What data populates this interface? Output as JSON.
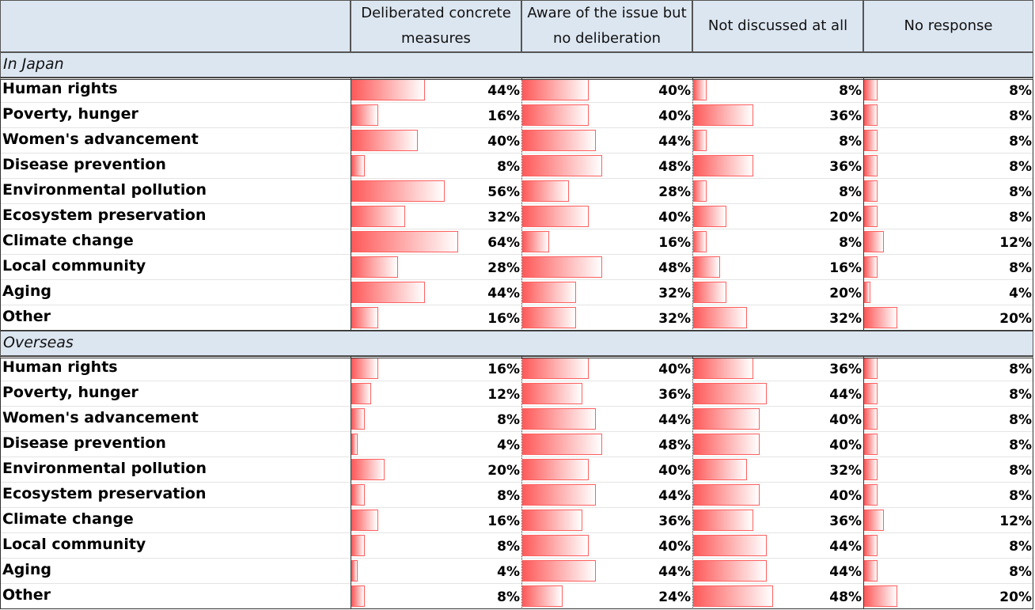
{
  "table": {
    "columns": [
      "Deliberated concrete measures",
      "Aware of the issue but no deliberation",
      "Not discussed at all",
      "No response"
    ],
    "sections": [
      {
        "title": "In Japan",
        "rows": [
          {
            "label": "Human rights",
            "values": [
              44,
              40,
              8,
              8
            ],
            "value_labels": [
              "44%",
              "40%",
              "8%",
              "8%"
            ]
          },
          {
            "label": "Poverty, hunger",
            "values": [
              16,
              40,
              36,
              8
            ],
            "value_labels": [
              "16%",
              "40%",
              "36%",
              "8%"
            ]
          },
          {
            "label": "Women's advancement",
            "values": [
              40,
              44,
              8,
              8
            ],
            "value_labels": [
              "40%",
              "44%",
              "8%",
              "8%"
            ]
          },
          {
            "label": "Disease prevention",
            "values": [
              8,
              48,
              36,
              8
            ],
            "value_labels": [
              "8%",
              "48%",
              "36%",
              "8%"
            ]
          },
          {
            "label": "Environmental pollution",
            "values": [
              56,
              28,
              8,
              8
            ],
            "value_labels": [
              "56%",
              "28%",
              "8%",
              "8%"
            ]
          },
          {
            "label": "Ecosystem preservation",
            "values": [
              32,
              40,
              20,
              8
            ],
            "value_labels": [
              "32%",
              "40%",
              "20%",
              "8%"
            ]
          },
          {
            "label": "Climate change",
            "values": [
              64,
              16,
              8,
              12
            ],
            "value_labels": [
              "64%",
              "16%",
              "8%",
              "12%"
            ]
          },
          {
            "label": "Local community",
            "values": [
              28,
              48,
              16,
              8
            ],
            "value_labels": [
              "28%",
              "48%",
              "16%",
              "8%"
            ]
          },
          {
            "label": "Aging",
            "values": [
              44,
              32,
              20,
              4
            ],
            "value_labels": [
              "44%",
              "32%",
              "20%",
              "4%"
            ]
          },
          {
            "label": "Other",
            "values": [
              16,
              32,
              32,
              20
            ],
            "value_labels": [
              "16%",
              "32%",
              "32%",
              "20%"
            ]
          }
        ]
      },
      {
        "title": "Overseas",
        "rows": [
          {
            "label": "Human rights",
            "values": [
              16,
              40,
              36,
              8
            ],
            "value_labels": [
              "16%",
              "40%",
              "36%",
              "8%"
            ]
          },
          {
            "label": "Poverty, hunger",
            "values": [
              12,
              36,
              44,
              8
            ],
            "value_labels": [
              "12%",
              "36%",
              "44%",
              "8%"
            ]
          },
          {
            "label": "Women's advancement",
            "values": [
              8,
              44,
              40,
              8
            ],
            "value_labels": [
              "8%",
              "44%",
              "40%",
              "8%"
            ]
          },
          {
            "label": "Disease prevention",
            "values": [
              4,
              48,
              40,
              8
            ],
            "value_labels": [
              "4%",
              "48%",
              "40%",
              "8%"
            ]
          },
          {
            "label": "Environmental pollution",
            "values": [
              20,
              40,
              32,
              8
            ],
            "value_labels": [
              "20%",
              "40%",
              "32%",
              "8%"
            ]
          },
          {
            "label": "Ecosystem preservation",
            "values": [
              8,
              44,
              40,
              8
            ],
            "value_labels": [
              "8%",
              "44%",
              "40%",
              "8%"
            ]
          },
          {
            "label": "Climate change",
            "values": [
              16,
              36,
              36,
              12
            ],
            "value_labels": [
              "16%",
              "36%",
              "36%",
              "12%"
            ]
          },
          {
            "label": "Local community",
            "values": [
              8,
              40,
              44,
              8
            ],
            "value_labels": [
              "8%",
              "40%",
              "44%",
              "8%"
            ]
          },
          {
            "label": "Aging",
            "values": [
              4,
              44,
              44,
              8
            ],
            "value_labels": [
              "4%",
              "44%",
              "44%",
              "8%"
            ]
          },
          {
            "label": "Other",
            "values": [
              8,
              24,
              48,
              20
            ],
            "value_labels": [
              "8%",
              "24%",
              "48%",
              "20%"
            ]
          }
        ]
      }
    ]
  }
}
